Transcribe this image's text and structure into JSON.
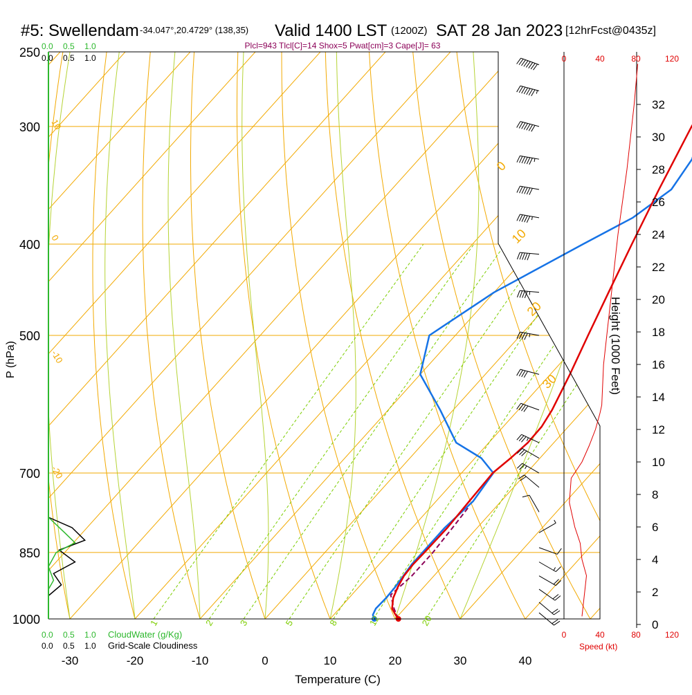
{
  "colors": {
    "isotherm": "#f2a900",
    "mixing": "#7ccd00",
    "moistAdiabat": "#b5d334",
    "temperature": "#e00000",
    "dewpoint": "#1673e6",
    "parcel": "#8b0057",
    "cloud": "#2db82d",
    "speed": "#e00000",
    "frame": "#000000"
  },
  "chart_data": {
    "type": "skew-t",
    "title": "#5: Swellendam",
    "location": "-34.047°,20.4729° (138,35)",
    "valid": "Valid 1400 LST",
    "valid_utc": "(1200Z)",
    "date": "SAT 28 Jan 2023",
    "forecast": "[12hrFcst@0435z]",
    "indices": "Plcl=943 Tlcl[C]=14 Shox=5 Pwat[cm]=3 Cape[J]= 63",
    "xlabel": "Temperature (C)",
    "ylabel": "P (hPa)",
    "height_label": "Height (1000 Feet)",
    "cloud_water_label": "CloudWater (g/Kg)",
    "cloudiness_label": "Grid-Scale Cloudiness",
    "speed_label": "Speed (kt)",
    "xlim": [
      -35,
      47
    ],
    "pressure_ticks": [
      {
        "p": 250,
        "label": "250"
      },
      {
        "p": 300,
        "label": "300"
      },
      {
        "p": 400,
        "label": "400"
      },
      {
        "p": 500,
        "label": "500"
      },
      {
        "p": 700,
        "label": "700"
      },
      {
        "p": 850,
        "label": "850"
      },
      {
        "p": 1000,
        "label": "1000"
      }
    ],
    "temp_ticks": [
      {
        "t": -30,
        "label": "-30"
      },
      {
        "t": -20,
        "label": "-20"
      },
      {
        "t": -10,
        "label": "-10"
      },
      {
        "t": 0,
        "label": "0"
      },
      {
        "t": 10,
        "label": "10"
      },
      {
        "t": 20,
        "label": "20"
      },
      {
        "t": 30,
        "label": "30"
      },
      {
        "t": 40,
        "label": "40"
      }
    ],
    "height_ticks": [
      {
        "h": 0,
        "label": "0"
      },
      {
        "h": 2,
        "label": "2"
      },
      {
        "h": 4,
        "label": "4"
      },
      {
        "h": 6,
        "label": "6"
      },
      {
        "h": 8,
        "label": "8"
      },
      {
        "h": 10,
        "label": "10"
      },
      {
        "h": 12,
        "label": "12"
      },
      {
        "h": 14,
        "label": "14"
      },
      {
        "h": 16,
        "label": "16"
      },
      {
        "h": 18,
        "label": "18"
      },
      {
        "h": 20,
        "label": "20"
      },
      {
        "h": 22,
        "label": "22"
      },
      {
        "h": 24,
        "label": "24"
      },
      {
        "h": 26,
        "label": "26"
      },
      {
        "h": 28,
        "label": "28"
      },
      {
        "h": 30,
        "label": "30"
      },
      {
        "h": 32,
        "label": "32"
      }
    ],
    "speed_ticks_top": [
      {
        "v": 0,
        "label": "0"
      },
      {
        "v": 40,
        "label": "40"
      },
      {
        "v": 80,
        "label": "80"
      },
      {
        "v": 120,
        "label": "120"
      }
    ],
    "speed_ticks_bottom": [
      {
        "v": 0,
        "label": "0"
      },
      {
        "v": 40,
        "label": "40"
      },
      {
        "v": 80,
        "label": "80"
      },
      {
        "v": 120,
        "label": "120"
      }
    ],
    "cloud_ticks_top": [
      {
        "v": 0,
        "label": "0.0"
      },
      {
        "v": 0.5,
        "label": "0.5"
      },
      {
        "v": 1.0,
        "label": "1.0"
      }
    ],
    "cloudiness_ticks_top": [
      {
        "v": 0,
        "label": "0.0"
      },
      {
        "v": 0.5,
        "label": "0.5"
      },
      {
        "v": 1.0,
        "label": "1.0"
      }
    ],
    "cloud_ticks_bottom": [
      {
        "v": 0,
        "label": "0.0"
      },
      {
        "v": 0.5,
        "label": "0.5"
      },
      {
        "v": 1.0,
        "label": "1.0"
      }
    ],
    "cloudiness_ticks_bottom": [
      {
        "v": 0,
        "label": "0.0"
      },
      {
        "v": 0.5,
        "label": "0.5"
      },
      {
        "v": 1.0,
        "label": "1.0"
      }
    ],
    "dry_adiabat_labels": [
      {
        "theta": 0,
        "label": "0"
      },
      {
        "theta": 10,
        "label": "10"
      },
      {
        "theta": 20,
        "label": "20"
      },
      {
        "theta": 30,
        "label": "30"
      }
    ],
    "isotherm_edge_labels": [
      {
        "t": 10,
        "label": "10"
      },
      {
        "t": 0,
        "label": "0"
      },
      {
        "t": -10,
        "label": "-10"
      },
      {
        "t": -20,
        "label": "-20"
      }
    ],
    "mixing_ratio_labels": [
      {
        "w": 1,
        "label": "1"
      },
      {
        "w": 2,
        "label": "2"
      },
      {
        "w": 3,
        "label": "3"
      },
      {
        "w": 5,
        "label": "5"
      },
      {
        "w": 8,
        "label": "8"
      },
      {
        "w": 12,
        "label": "12"
      },
      {
        "w": 20,
        "label": "20"
      }
    ],
    "temperature_profile": [
      {
        "p": 1000,
        "t": 20.5
      },
      {
        "p": 990,
        "t": 19.5
      },
      {
        "p": 975,
        "t": 18.1
      },
      {
        "p": 950,
        "t": 16.8
      },
      {
        "p": 925,
        "t": 16.0
      },
      {
        "p": 900,
        "t": 15.4
      },
      {
        "p": 875,
        "t": 15.2
      },
      {
        "p": 850,
        "t": 15.3
      },
      {
        "p": 800,
        "t": 15.4
      },
      {
        "p": 750,
        "t": 15.1
      },
      {
        "p": 700,
        "t": 14.8
      },
      {
        "p": 675,
        "t": 15.5
      },
      {
        "p": 650,
        "t": 16.0
      },
      {
        "p": 625,
        "t": 15.9
      },
      {
        "p": 600,
        "t": 15.2
      },
      {
        "p": 550,
        "t": 13.0
      },
      {
        "p": 500,
        "t": 10.4
      },
      {
        "p": 450,
        "t": 7.6
      },
      {
        "p": 400,
        "t": 4.5
      },
      {
        "p": 350,
        "t": 1.1
      },
      {
        "p": 300,
        "t": -2.6
      },
      {
        "p": 275,
        "t": -4.2
      },
      {
        "p": 260,
        "t": -5.0
      }
    ],
    "dewpoint_profile": [
      {
        "p": 1000,
        "t": 16.8
      },
      {
        "p": 990,
        "t": 16.0
      },
      {
        "p": 975,
        "t": 15.6
      },
      {
        "p": 950,
        "t": 15.7
      },
      {
        "p": 925,
        "t": 15.6
      },
      {
        "p": 900,
        "t": 15.3
      },
      {
        "p": 875,
        "t": 15.0
      },
      {
        "p": 850,
        "t": 15.0
      },
      {
        "p": 800,
        "t": 15.0
      },
      {
        "p": 750,
        "t": 15.7
      },
      {
        "p": 700,
        "t": 14.9
      },
      {
        "p": 675,
        "t": 11.0
      },
      {
        "p": 650,
        "t": 5.0
      },
      {
        "p": 600,
        "t": -2.0
      },
      {
        "p": 550,
        "t": -10.0
      },
      {
        "p": 500,
        "t": -14.0
      },
      {
        "p": 450,
        "t": -10.0
      },
      {
        "p": 400,
        "t": -3.0
      },
      {
        "p": 375,
        "t": 1.0
      },
      {
        "p": 350,
        "t": 3.0
      },
      {
        "p": 325,
        "t": 2.0
      },
      {
        "p": 300,
        "t": -1.0
      },
      {
        "p": 275,
        "t": -5.0
      },
      {
        "p": 260,
        "t": -8.0
      }
    ],
    "parcel_profile": [
      {
        "p": 1000,
        "t": 20.5
      },
      {
        "p": 975,
        "t": 18.4
      },
      {
        "p": 943,
        "t": 16.0
      },
      {
        "p": 900,
        "t": 16.6
      },
      {
        "p": 850,
        "t": 16.6
      },
      {
        "p": 800,
        "t": 16.2
      },
      {
        "p": 760,
        "t": 15.8
      }
    ],
    "cloud_water_profile": [
      {
        "p": 780,
        "v": 0.0
      },
      {
        "p": 810,
        "v": 0.38
      },
      {
        "p": 830,
        "v": 0.62
      },
      {
        "p": 850,
        "v": 0.18
      },
      {
        "p": 880,
        "v": 0.0
      },
      {
        "p": 910,
        "v": 0.12
      },
      {
        "p": 930,
        "v": 0.0
      }
    ],
    "cloudiness_profile": [
      {
        "p": 780,
        "v": 0.0
      },
      {
        "p": 800,
        "v": 0.55
      },
      {
        "p": 825,
        "v": 0.85
      },
      {
        "p": 845,
        "v": 0.25
      },
      {
        "p": 870,
        "v": 0.62
      },
      {
        "p": 895,
        "v": 0.12
      },
      {
        "p": 920,
        "v": 0.3
      },
      {
        "p": 945,
        "v": 0.0
      }
    ],
    "wind_speed_profile": [
      {
        "h": 0.5,
        "kt": 20
      },
      {
        "h": 1.5,
        "kt": 22
      },
      {
        "h": 3,
        "kt": 25
      },
      {
        "h": 4,
        "kt": 20
      },
      {
        "h": 5,
        "kt": 18
      },
      {
        "h": 6,
        "kt": 12
      },
      {
        "h": 7.5,
        "kt": 6
      },
      {
        "h": 9,
        "kt": 8
      },
      {
        "h": 10,
        "kt": 20
      },
      {
        "h": 11,
        "kt": 28
      },
      {
        "h": 12,
        "kt": 35
      },
      {
        "h": 13,
        "kt": 40
      },
      {
        "h": 13.5,
        "kt": 42
      },
      {
        "h": 16,
        "kt": 44
      },
      {
        "h": 20,
        "kt": 52
      },
      {
        "h": 24,
        "kt": 60
      },
      {
        "h": 28,
        "kt": 70
      },
      {
        "h": 32,
        "kt": 78
      },
      {
        "h": 34.5,
        "kt": 82
      }
    ],
    "wind_barbs": [
      {
        "p": 258,
        "dir": 290,
        "kt": 80
      },
      {
        "p": 275,
        "dir": 285,
        "kt": 75
      },
      {
        "p": 300,
        "dir": 285,
        "kt": 70
      },
      {
        "p": 325,
        "dir": 280,
        "kt": 65
      },
      {
        "p": 350,
        "dir": 280,
        "kt": 60
      },
      {
        "p": 375,
        "dir": 280,
        "kt": 55
      },
      {
        "p": 410,
        "dir": 275,
        "kt": 50
      },
      {
        "p": 450,
        "dir": 275,
        "kt": 45
      },
      {
        "p": 500,
        "dir": 280,
        "kt": 45
      },
      {
        "p": 550,
        "dir": 285,
        "kt": 40
      },
      {
        "p": 600,
        "dir": 290,
        "kt": 40
      },
      {
        "p": 650,
        "dir": 295,
        "kt": 35
      },
      {
        "p": 675,
        "dir": 300,
        "kt": 30
      },
      {
        "p": 700,
        "dir": 300,
        "kt": 25
      },
      {
        "p": 725,
        "dir": 310,
        "kt": 20
      },
      {
        "p": 770,
        "dir": 330,
        "kt": 10
      },
      {
        "p": 810,
        "dir": 60,
        "kt": 5
      },
      {
        "p": 840,
        "dir": 110,
        "kt": 10
      },
      {
        "p": 870,
        "dir": 120,
        "kt": 15
      },
      {
        "p": 900,
        "dir": 120,
        "kt": 20
      },
      {
        "p": 930,
        "dir": 125,
        "kt": 20
      },
      {
        "p": 960,
        "dir": 130,
        "kt": 20
      },
      {
        "p": 985,
        "dir": 130,
        "kt": 20
      }
    ]
  }
}
